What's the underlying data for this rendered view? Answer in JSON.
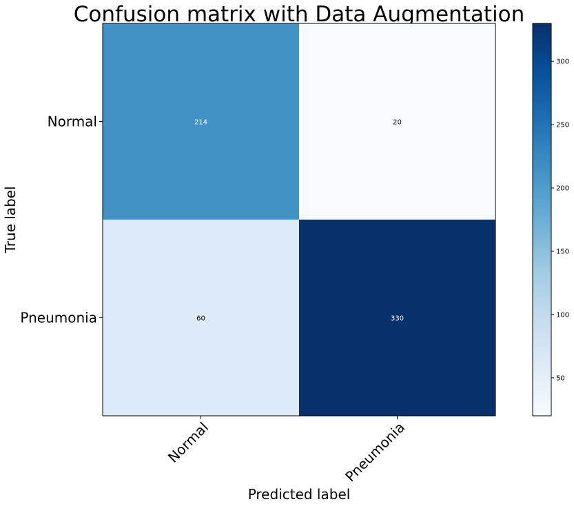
{
  "chart_data": {
    "type": "heatmap",
    "title": "Confusion matrix with Data Augmentation",
    "xlabel": "Predicted label",
    "ylabel": "True label",
    "x_categories": [
      "Normal",
      "Pneumonia"
    ],
    "y_categories": [
      "Normal",
      "Pneumonia"
    ],
    "values": [
      [
        214,
        20
      ],
      [
        60,
        330
      ]
    ],
    "colormap": "Blues",
    "colorbar": {
      "min": 20,
      "max": 330,
      "ticks": [
        50,
        100,
        150,
        200,
        250,
        300
      ]
    },
    "text_color_dark": "#ffffff",
    "text_color_light": "#000000",
    "grid": false
  }
}
